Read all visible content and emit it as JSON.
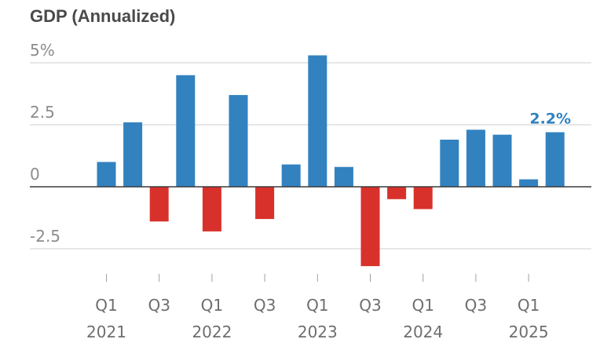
{
  "chart_data": {
    "type": "bar",
    "title": "GDP (Annualized)",
    "categories": [
      "Q1 2021",
      "Q2 2021",
      "Q3 2021",
      "Q4 2021",
      "Q1 2022",
      "Q2 2022",
      "Q3 2022",
      "Q4 2022",
      "Q1 2023",
      "Q2 2023",
      "Q3 2023",
      "Q4 2023",
      "Q1 2024",
      "Q2 2024",
      "Q3 2024",
      "Q4 2024",
      "Q1 2025",
      "Q2 2025"
    ],
    "values": [
      1.0,
      2.6,
      -1.4,
      4.5,
      -1.8,
      3.7,
      -1.3,
      0.9,
      5.3,
      0.8,
      -3.2,
      -0.5,
      -0.9,
      1.9,
      2.3,
      2.1,
      0.3,
      2.2
    ],
    "ylim": [
      -3.2,
      5.8
    ],
    "yticks": [
      {
        "value": 5,
        "label": "5%"
      },
      {
        "value": 2.5,
        "label": "2.5"
      },
      {
        "value": 0,
        "label": "0"
      },
      {
        "value": -2.5,
        "label": "-2.5"
      }
    ],
    "xticks": [
      {
        "index": 0,
        "quarter": "Q1",
        "year": "2021"
      },
      {
        "index": 2,
        "quarter": "Q3",
        "year": ""
      },
      {
        "index": 4,
        "quarter": "Q1",
        "year": "2022"
      },
      {
        "index": 6,
        "quarter": "Q3",
        "year": ""
      },
      {
        "index": 8,
        "quarter": "Q1",
        "year": "2023"
      },
      {
        "index": 10,
        "quarter": "Q3",
        "year": ""
      },
      {
        "index": 12,
        "quarter": "Q1",
        "year": "2024"
      },
      {
        "index": 14,
        "quarter": "Q3",
        "year": ""
      },
      {
        "index": 16,
        "quarter": "Q1",
        "year": "2025"
      }
    ],
    "annotations": [
      {
        "index": 17,
        "label": "2.2%"
      }
    ],
    "grid": true,
    "colors": {
      "positive": "#3282c0",
      "negative": "#d8312b",
      "annotation": "#3282c0"
    }
  }
}
